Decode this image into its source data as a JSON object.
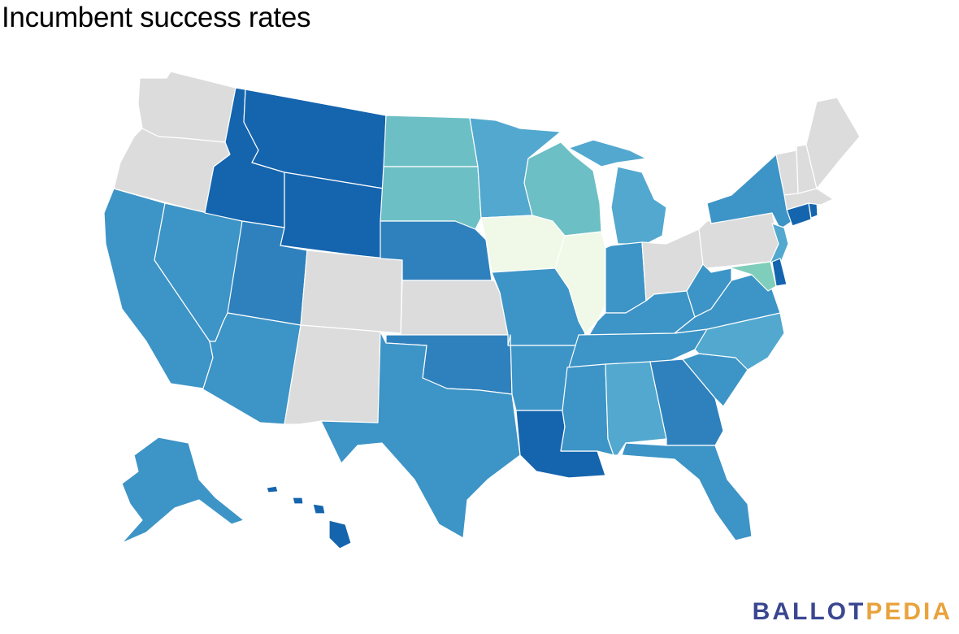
{
  "title": "Incumbent success rates",
  "logo": {
    "part1": "BALLOT",
    "part2": "PEDIA"
  },
  "colors": {
    "no_data": "#dcdcdc",
    "lightest": "#f0f9e8",
    "teal_light": "#7fcdbb",
    "teal": "#6cbfc5",
    "blue_light": "#52a8cf",
    "blue": "#3d94c6",
    "blue_mid": "#2f81bd",
    "blue_dark": "#1564ae"
  },
  "states": [
    {
      "id": "WA",
      "color": "#dcdcdc"
    },
    {
      "id": "OR",
      "color": "#dcdcdc"
    },
    {
      "id": "CA",
      "color": "#3d94c6"
    },
    {
      "id": "NV",
      "color": "#3d94c6"
    },
    {
      "id": "ID",
      "color": "#1564ae"
    },
    {
      "id": "MT",
      "color": "#1564ae"
    },
    {
      "id": "WY",
      "color": "#1564ae"
    },
    {
      "id": "UT",
      "color": "#2f81bd"
    },
    {
      "id": "AZ",
      "color": "#3d94c6"
    },
    {
      "id": "CO",
      "color": "#dcdcdc"
    },
    {
      "id": "NM",
      "color": "#dcdcdc"
    },
    {
      "id": "ND",
      "color": "#6cbfc5"
    },
    {
      "id": "SD",
      "color": "#6cbfc5"
    },
    {
      "id": "NE",
      "color": "#2f81bd"
    },
    {
      "id": "KS",
      "color": "#dcdcdc"
    },
    {
      "id": "OK",
      "color": "#2f81bd"
    },
    {
      "id": "TX",
      "color": "#3d94c6"
    },
    {
      "id": "MN",
      "color": "#52a8cf"
    },
    {
      "id": "IA",
      "color": "#f0f9e8"
    },
    {
      "id": "MO",
      "color": "#3d94c6"
    },
    {
      "id": "AR",
      "color": "#3d94c6"
    },
    {
      "id": "LA",
      "color": "#1564ae"
    },
    {
      "id": "WI",
      "color": "#6cbfc5"
    },
    {
      "id": "IL",
      "color": "#f0f9e8"
    },
    {
      "id": "MI",
      "color": "#52a8cf"
    },
    {
      "id": "IN",
      "color": "#3d94c6"
    },
    {
      "id": "OH",
      "color": "#dcdcdc"
    },
    {
      "id": "KY",
      "color": "#3d94c6"
    },
    {
      "id": "TN",
      "color": "#3d94c6"
    },
    {
      "id": "MS",
      "color": "#3d94c6"
    },
    {
      "id": "AL",
      "color": "#52a8cf"
    },
    {
      "id": "GA",
      "color": "#2f81bd"
    },
    {
      "id": "FL",
      "color": "#3d94c6"
    },
    {
      "id": "SC",
      "color": "#3d94c6"
    },
    {
      "id": "NC",
      "color": "#52a8cf"
    },
    {
      "id": "VA",
      "color": "#3d94c6"
    },
    {
      "id": "WV",
      "color": "#3d94c6"
    },
    {
      "id": "PA",
      "color": "#dcdcdc"
    },
    {
      "id": "NY",
      "color": "#3d94c6"
    },
    {
      "id": "NJ",
      "color": "#52a8cf"
    },
    {
      "id": "DE",
      "color": "#1564ae"
    },
    {
      "id": "MD",
      "color": "#7fcdbb"
    },
    {
      "id": "CT",
      "color": "#1564ae"
    },
    {
      "id": "RI",
      "color": "#1564ae"
    },
    {
      "id": "MA",
      "color": "#dcdcdc"
    },
    {
      "id": "VT",
      "color": "#dcdcdc"
    },
    {
      "id": "NH",
      "color": "#dcdcdc"
    },
    {
      "id": "ME",
      "color": "#dcdcdc"
    },
    {
      "id": "AK",
      "color": "#3d94c6"
    },
    {
      "id": "HI",
      "color": "#1564ae"
    }
  ]
}
